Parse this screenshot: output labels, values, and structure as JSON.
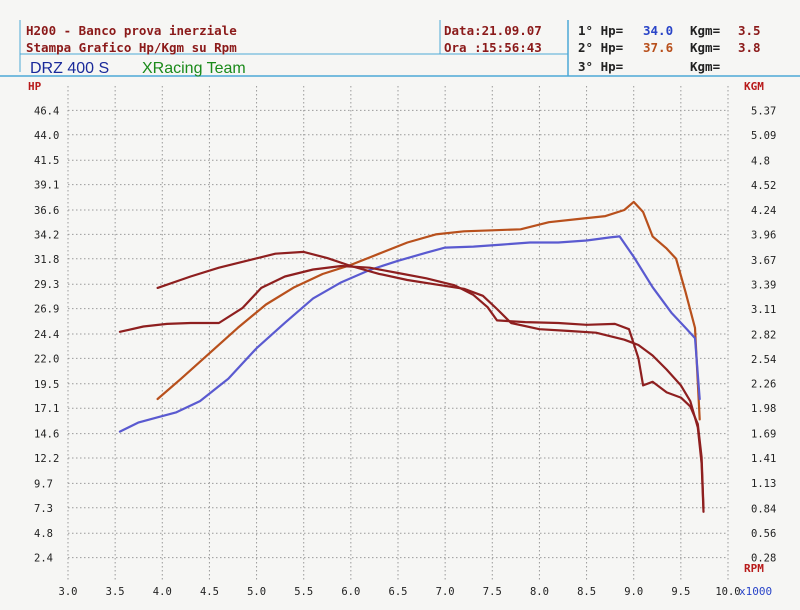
{
  "header": {
    "title_line1": "H200 - Banco prova inerziale",
    "title_line2": "Stampa Grafico Hp/Kgm su Rpm",
    "date_label": "Data:21.09.07",
    "time_label": "Ora :15:56:43",
    "runs": [
      {
        "prefix": "1° Hp=",
        "hp": "34.0",
        "kgm_label": "Kgm=",
        "kgm": "3.5"
      },
      {
        "prefix": "2° Hp=",
        "hp": "37.6",
        "kgm_label": "Kgm=",
        "kgm": "3.8"
      },
      {
        "prefix": "3° Hp=",
        "hp": "",
        "kgm_label": "Kgm=",
        "kgm": ""
      }
    ],
    "bike": "DRZ 400 S",
    "team": "XRacing Team"
  },
  "colors": {
    "title": "#8b1a1a",
    "grid": "#9a9a9a",
    "ticks": "#222222",
    "hp_value": "#2a45c8",
    "kgm_value": "#8b1a1a",
    "bike": "#1a2a9a",
    "team": "#1a8a1a",
    "frame": "#4da9d6",
    "series_orange": "#b8501c",
    "series_blue": "#5a5ad0",
    "series_darkred": "#8e1f1f"
  },
  "chart_data": {
    "type": "line",
    "xlabel": "RPM",
    "x_unit": "x1000",
    "ylabel_left": "HP",
    "ylabel_right": "KGM",
    "xlim": [
      3.0,
      10.0
    ],
    "ylim_left": [
      0,
      48.8
    ],
    "ylim_right": [
      0,
      5.65
    ],
    "x_ticks": [
      "3.0",
      "3.5",
      "4.0",
      "4.5",
      "5.0",
      "5.5",
      "6.0",
      "6.5",
      "7.0",
      "7.5",
      "8.0",
      "8.5",
      "9.0",
      "9.5",
      "10.0"
    ],
    "y_left_ticks": [
      "2.4",
      "4.8",
      "7.3",
      "9.7",
      "12.2",
      "14.6",
      "17.1",
      "19.5",
      "22.0",
      "24.4",
      "26.9",
      "29.3",
      "31.8",
      "34.2",
      "36.6",
      "39.1",
      "41.5",
      "44.0",
      "46.4"
    ],
    "y_right_ticks": [
      "0.28",
      "0.56",
      "0.84",
      "1.13",
      "1.41",
      "1.69",
      "1.98",
      "2.26",
      "2.54",
      "2.82",
      "3.11",
      "3.39",
      "3.67",
      "3.96",
      "4.24",
      "4.52",
      "4.8",
      "5.09",
      "5.37"
    ],
    "grid": true,
    "series": [
      {
        "axis": "left",
        "color": "#b8501c",
        "points": [
          [
            3.95,
            18.0
          ],
          [
            4.2,
            20.0
          ],
          [
            4.5,
            22.5
          ],
          [
            4.8,
            25.0
          ],
          [
            5.1,
            27.3
          ],
          [
            5.4,
            29.0
          ],
          [
            5.7,
            30.3
          ],
          [
            6.0,
            31.2
          ],
          [
            6.3,
            32.3
          ],
          [
            6.6,
            33.4
          ],
          [
            6.9,
            34.2
          ],
          [
            7.2,
            34.5
          ],
          [
            7.5,
            34.6
          ],
          [
            7.8,
            34.7
          ],
          [
            8.1,
            35.4
          ],
          [
            8.4,
            35.7
          ],
          [
            8.7,
            36.0
          ],
          [
            8.9,
            36.6
          ],
          [
            9.0,
            37.4
          ],
          [
            9.1,
            36.4
          ],
          [
            9.2,
            34.0
          ],
          [
            9.35,
            32.8
          ],
          [
            9.45,
            31.8
          ],
          [
            9.55,
            28.5
          ],
          [
            9.65,
            25.0
          ],
          [
            9.7,
            16.0
          ]
        ]
      },
      {
        "axis": "left",
        "color": "#5a5ad0",
        "points": [
          [
            3.55,
            14.8
          ],
          [
            3.75,
            15.7
          ],
          [
            3.95,
            16.2
          ],
          [
            4.15,
            16.7
          ],
          [
            4.4,
            17.8
          ],
          [
            4.7,
            20.0
          ],
          [
            5.0,
            23.0
          ],
          [
            5.3,
            25.5
          ],
          [
            5.6,
            27.9
          ],
          [
            5.9,
            29.5
          ],
          [
            6.2,
            30.7
          ],
          [
            6.5,
            31.6
          ],
          [
            6.8,
            32.4
          ],
          [
            7.0,
            32.9
          ],
          [
            7.3,
            33.0
          ],
          [
            7.6,
            33.2
          ],
          [
            7.9,
            33.4
          ],
          [
            8.2,
            33.4
          ],
          [
            8.5,
            33.6
          ],
          [
            8.75,
            33.9
          ],
          [
            8.85,
            34.0
          ],
          [
            9.0,
            32.0
          ],
          [
            9.2,
            29.0
          ],
          [
            9.4,
            26.5
          ],
          [
            9.55,
            25.0
          ],
          [
            9.65,
            24.0
          ],
          [
            9.7,
            18.0
          ]
        ]
      },
      {
        "axis": "right",
        "color": "#8e1f1f",
        "points": [
          [
            3.95,
            3.35
          ],
          [
            4.3,
            3.48
          ],
          [
            4.6,
            3.58
          ],
          [
            4.9,
            3.66
          ],
          [
            5.2,
            3.74
          ],
          [
            5.5,
            3.76
          ],
          [
            5.75,
            3.69
          ],
          [
            6.0,
            3.6
          ],
          [
            6.3,
            3.51
          ],
          [
            6.6,
            3.44
          ],
          [
            6.9,
            3.39
          ],
          [
            7.2,
            3.34
          ],
          [
            7.4,
            3.26
          ],
          [
            7.55,
            3.11
          ],
          [
            7.7,
            2.95
          ],
          [
            8.0,
            2.88
          ],
          [
            8.3,
            2.86
          ],
          [
            8.6,
            2.84
          ],
          [
            8.9,
            2.76
          ],
          [
            9.05,
            2.7
          ],
          [
            9.2,
            2.58
          ],
          [
            9.35,
            2.42
          ],
          [
            9.5,
            2.24
          ],
          [
            9.6,
            2.06
          ],
          [
            9.68,
            1.76
          ],
          [
            9.72,
            1.35
          ],
          [
            9.74,
            0.8
          ]
        ]
      },
      {
        "axis": "right",
        "color": "#8e1f1f",
        "points": [
          [
            3.55,
            2.85
          ],
          [
            3.8,
            2.91
          ],
          [
            4.05,
            2.94
          ],
          [
            4.3,
            2.95
          ],
          [
            4.6,
            2.95
          ],
          [
            4.85,
            3.12
          ],
          [
            5.05,
            3.35
          ],
          [
            5.3,
            3.48
          ],
          [
            5.6,
            3.56
          ],
          [
            5.9,
            3.6
          ],
          [
            6.2,
            3.58
          ],
          [
            6.5,
            3.52
          ],
          [
            6.8,
            3.46
          ],
          [
            7.1,
            3.38
          ],
          [
            7.3,
            3.27
          ],
          [
            7.45,
            3.13
          ],
          [
            7.55,
            2.98
          ],
          [
            7.85,
            2.96
          ],
          [
            8.2,
            2.95
          ],
          [
            8.5,
            2.93
          ],
          [
            8.8,
            2.94
          ],
          [
            8.95,
            2.88
          ],
          [
            9.05,
            2.55
          ],
          [
            9.1,
            2.24
          ],
          [
            9.2,
            2.28
          ],
          [
            9.35,
            2.16
          ],
          [
            9.5,
            2.1
          ],
          [
            9.6,
            2.0
          ],
          [
            9.68,
            1.8
          ],
          [
            9.72,
            1.42
          ],
          [
            9.74,
            0.84
          ]
        ]
      }
    ]
  }
}
